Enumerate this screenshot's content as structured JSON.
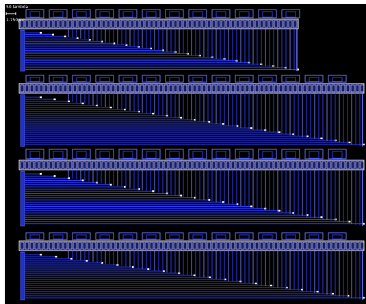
{
  "scale": {
    "primary_label": "50 lambda",
    "secondary_label": "1.750µm"
  },
  "colors": {
    "background": "#000000",
    "frame": "#ffffff",
    "wire_primary": "#2c3cff",
    "wire_secondary": "#6f7bff",
    "cell_outline": "#f2f2ff",
    "via": "#ffffff"
  },
  "layout": {
    "block_count": 4,
    "description": "Four stacked layout blocks with a row of standard cells, staircase horizontal routing, and dense vertical interconnect"
  }
}
